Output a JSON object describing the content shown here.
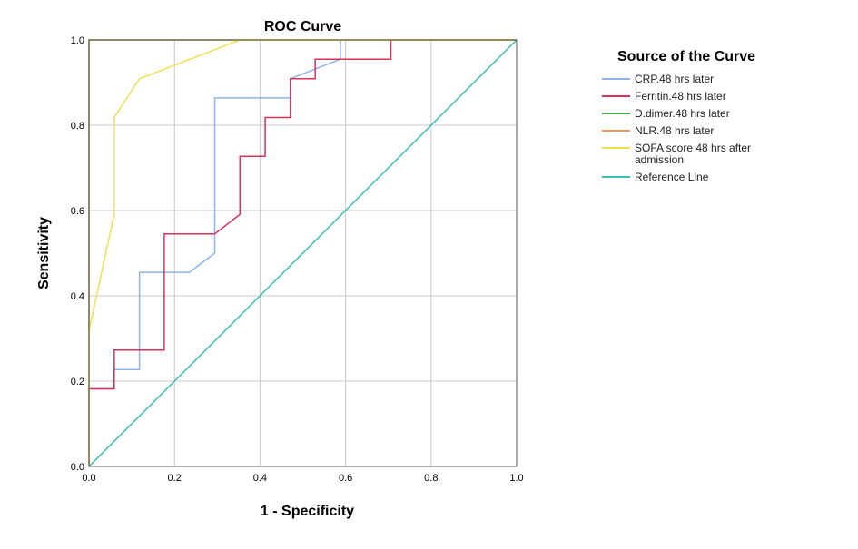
{
  "chart_data": {
    "type": "line",
    "title": "ROC Curve",
    "xlabel": "1 - Specificity",
    "ylabel": "Sensitivity",
    "xlim": [
      0,
      1
    ],
    "ylim": [
      0,
      1
    ],
    "xticks": [
      "0.0",
      "0.2",
      "0.4",
      "0.6",
      "0.8",
      "1.0"
    ],
    "yticks": [
      "0.0",
      "0.2",
      "0.4",
      "0.6",
      "0.8",
      "1.0"
    ],
    "grid": true,
    "legend_title": "Source of the Curve",
    "legend_position": "right",
    "series": [
      {
        "name": "CRP.48 hrs later",
        "color": "#8fb5e8",
        "points": [
          [
            0,
            0
          ],
          [
            0,
            0.182
          ],
          [
            0.059,
            0.182
          ],
          [
            0.059,
            0.227
          ],
          [
            0.118,
            0.227
          ],
          [
            0.118,
            0.455
          ],
          [
            0.235,
            0.455
          ],
          [
            0.294,
            0.5
          ],
          [
            0.294,
            0.864
          ],
          [
            0.471,
            0.864
          ],
          [
            0.471,
            0.909
          ],
          [
            0.588,
            0.955
          ],
          [
            0.588,
            1.0
          ],
          [
            1.0,
            1.0
          ]
        ]
      },
      {
        "name": "Ferritin.48 hrs later",
        "color": "#d6325a",
        "points": [
          [
            0,
            0
          ],
          [
            0,
            0.182
          ],
          [
            0.059,
            0.182
          ],
          [
            0.059,
            0.273
          ],
          [
            0.176,
            0.273
          ],
          [
            0.176,
            0.545
          ],
          [
            0.294,
            0.545
          ],
          [
            0.353,
            0.591
          ],
          [
            0.353,
            0.727
          ],
          [
            0.412,
            0.727
          ],
          [
            0.412,
            0.818
          ],
          [
            0.471,
            0.818
          ],
          [
            0.471,
            0.909
          ],
          [
            0.529,
            0.909
          ],
          [
            0.529,
            0.955
          ],
          [
            0.706,
            0.955
          ],
          [
            0.706,
            1.0
          ],
          [
            1.0,
            1.0
          ]
        ]
      },
      {
        "name": "D.dimer.48 hrs later",
        "color": "#4caf50",
        "points": [
          [
            0,
            0
          ],
          [
            0,
            1.0
          ],
          [
            1.0,
            1.0
          ]
        ]
      },
      {
        "name": "NLR.48 hrs later",
        "color": "#f0965a",
        "points": [
          [
            0,
            0
          ],
          [
            0,
            1.0
          ],
          [
            1.0,
            1.0
          ]
        ]
      },
      {
        "name": "SOFA score 48 hrs after admission",
        "color": "#f0e050",
        "points": [
          [
            0,
            0
          ],
          [
            0,
            0.318
          ],
          [
            0.059,
            0.591
          ],
          [
            0.059,
            0.818
          ],
          [
            0.118,
            0.909
          ],
          [
            0.353,
            1.0
          ],
          [
            1.0,
            1.0
          ]
        ]
      },
      {
        "name": "Reference Line",
        "color": "#3cc0b4",
        "points": [
          [
            0,
            0
          ],
          [
            1,
            1
          ]
        ]
      }
    ]
  }
}
